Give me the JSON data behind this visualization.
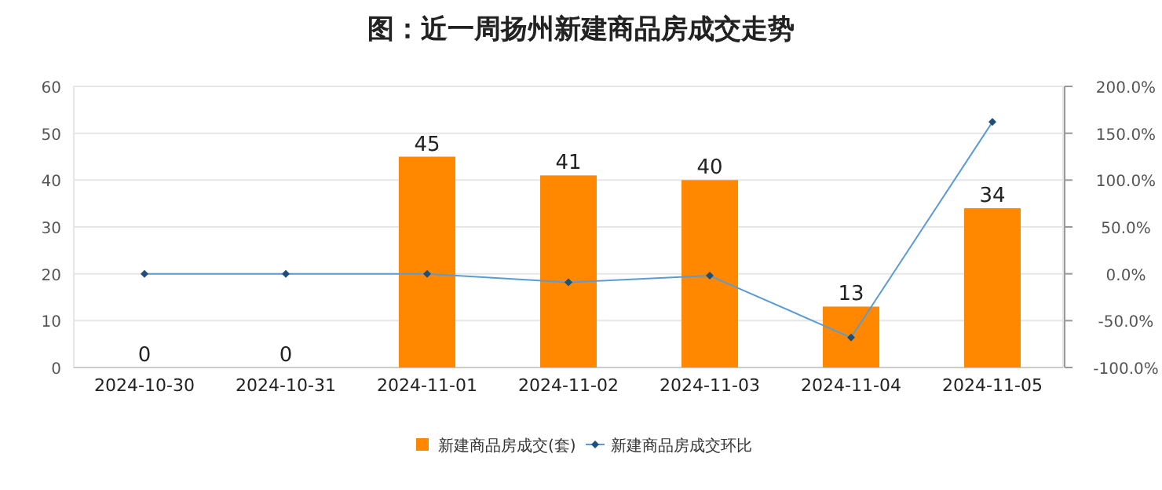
{
  "chart_data": {
    "type": "bar",
    "title": "图：近一周扬州新建商品房成交走势",
    "categories": [
      "2024-10-30",
      "2024-10-31",
      "2024-11-01",
      "2024-11-02",
      "2024-11-03",
      "2024-11-04",
      "2024-11-05"
    ],
    "series": [
      {
        "name": "新建商品房成交(套)",
        "color": "#ff8800",
        "values": [
          0,
          0,
          45,
          41,
          40,
          13,
          34
        ],
        "value_labels": [
          "0",
          "0",
          "45",
          "41",
          "40",
          "13",
          "34"
        ]
      },
      {
        "name": "新建商品房成交环比",
        "type": "line",
        "axis": "y2",
        "color": "#5b9bd5",
        "marker": "diamond",
        "values": [
          0,
          0,
          0,
          -9,
          -2,
          -68,
          162
        ]
      }
    ],
    "ylim": [
      0,
      60
    ],
    "yticks": [
      0,
      10,
      20,
      30,
      40,
      50,
      60
    ],
    "y2lim": [
      -100,
      200
    ],
    "y2ticks": [
      {
        "value": -100,
        "label": "-100.0%"
      },
      {
        "value": -50,
        "label": "-50.0%"
      },
      {
        "value": 0,
        "label": "0.0%"
      },
      {
        "value": 50,
        "label": "50.0%"
      },
      {
        "value": 100,
        "label": "100.0%"
      },
      {
        "value": 150,
        "label": "150.0%"
      },
      {
        "value": 200,
        "label": "200.0%"
      }
    ],
    "grid": "y",
    "legend": "bottom"
  }
}
